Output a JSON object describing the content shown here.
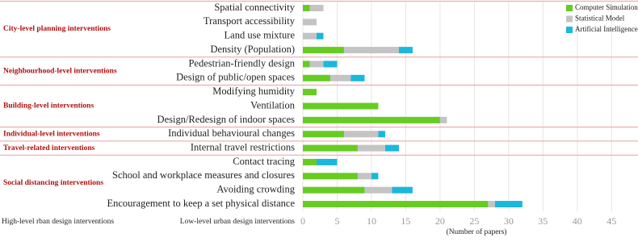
{
  "chart_data": {
    "type": "bar",
    "orientation": "horizontal",
    "stacked": true,
    "groups": [
      {
        "label": "City-level planning interventions",
        "categories": [
          "Spatial connectivity",
          "Transport accessibility",
          "Land use mixture",
          "Density (Population)"
        ]
      },
      {
        "label": "Neighbourhood-level interventions",
        "categories": [
          "Pedestrian-friendly design",
          "Design of public/open spaces"
        ]
      },
      {
        "label": "Building-level interventions",
        "categories": [
          "Modifying humidity",
          "Ventilation",
          "Design/Redesign of indoor spaces"
        ]
      },
      {
        "label": "Individual-level interventions",
        "categories": [
          "Individual behavioural changes"
        ]
      },
      {
        "label": "Travel-related interventions",
        "categories": [
          "Internal travel restrictions"
        ]
      },
      {
        "label": "Social distancing interventions",
        "categories": [
          "Contact tracing",
          "School and workplace measures and closures",
          "Avoiding crowding",
          "Encouragement to keep a set physical distance"
        ]
      }
    ],
    "series": [
      {
        "name": "Computer Simulation",
        "color": "#66cc22",
        "values": [
          1,
          0,
          0,
          6,
          1,
          4,
          2,
          11,
          20,
          6,
          8,
          2,
          8,
          9,
          27
        ]
      },
      {
        "name": "Statistical Model",
        "color": "#c4c4c4",
        "values": [
          2,
          2,
          2,
          8,
          2,
          3,
          0,
          0,
          1,
          5,
          4,
          0,
          2,
          4,
          1
        ]
      },
      {
        "name": "Artificial Intelligence",
        "color": "#1ab8dc",
        "values": [
          0,
          0,
          1,
          2,
          2,
          2,
          0,
          0,
          0,
          1,
          2,
          3,
          1,
          3,
          4
        ]
      }
    ],
    "xlim": [
      0,
      46.5
    ],
    "xticks": [
      0,
      5,
      10,
      15,
      20,
      25,
      30,
      35,
      40,
      45
    ],
    "x_label": "(Number of papers)",
    "group_axis_label": "High-level rban design interventions",
    "category_axis_label": "Low-level urban design interventions",
    "grid": true,
    "legend": "top-right"
  }
}
